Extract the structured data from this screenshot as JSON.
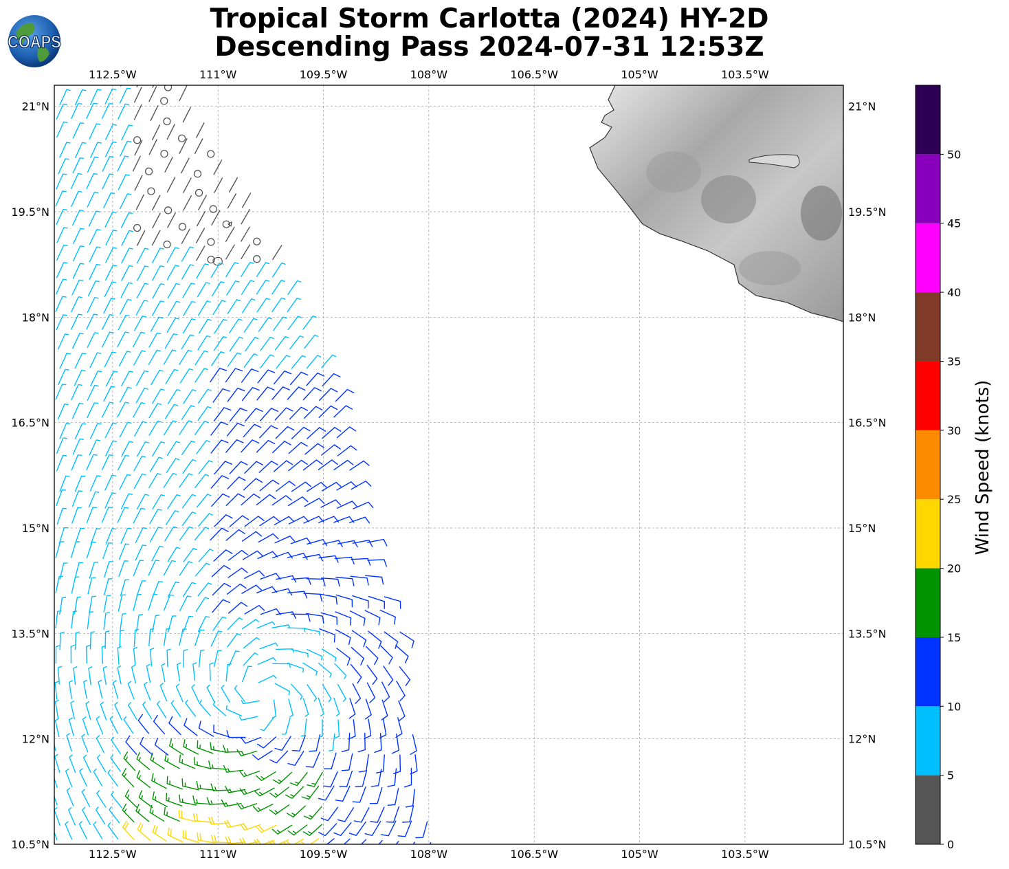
{
  "title": {
    "line1": "Tropical Storm Carlotta (2024) HY-2D",
    "line2": "Descending Pass 2024-07-31 12:53Z"
  },
  "logo": {
    "text": "COAPS",
    "icon": "globe-icon"
  },
  "axes": {
    "lon_ticks": [
      "112.5°W",
      "111°W",
      "109.5°W",
      "108°W",
      "106.5°W",
      "105°W",
      "103.5°W"
    ],
    "lon_values": [
      -112.5,
      -111,
      -109.5,
      -108,
      -106.5,
      -105,
      -103.5
    ],
    "lat_ticks": [
      "21°N",
      "19.5°N",
      "18°N",
      "16.5°N",
      "15°N",
      "13.5°N",
      "12°N",
      "10.5°N"
    ],
    "lat_values": [
      21,
      19.5,
      18,
      16.5,
      15,
      13.5,
      12,
      10.5
    ],
    "lon_range": [
      -113.33,
      -102.1
    ],
    "lat_range": [
      10.5,
      21.3
    ],
    "grid": true
  },
  "colorbar": {
    "label": "Wind Speed (knots)",
    "ticks": [
      "0",
      "5",
      "10",
      "15",
      "20",
      "25",
      "30",
      "35",
      "40",
      "45",
      "50"
    ],
    "bins": [
      {
        "min": 0,
        "max": 5,
        "color": "#555555"
      },
      {
        "min": 5,
        "max": 10,
        "color": "#00bfff"
      },
      {
        "min": 10,
        "max": 15,
        "color": "#0033ff"
      },
      {
        "min": 15,
        "max": 20,
        "color": "#009400"
      },
      {
        "min": 20,
        "max": 25,
        "color": "#ffd700"
      },
      {
        "min": 25,
        "max": 30,
        "color": "#ff8c00"
      },
      {
        "min": 30,
        "max": 35,
        "color": "#ff0000"
      },
      {
        "min": 35,
        "max": 40,
        "color": "#7f3b27"
      },
      {
        "min": 40,
        "max": 45,
        "color": "#ff00ff"
      },
      {
        "min": 45,
        "max": 50,
        "color": "#8800bb"
      },
      {
        "min": 50,
        "max": 55,
        "color": "#2d0055"
      }
    ]
  },
  "chart_data": {
    "type": "wind-barb-map",
    "storm_center": {
      "lon": -110.4,
      "lat": 12.6
    },
    "swath_edge_lat_lon": [
      [
        21.3,
        -111.6
      ],
      [
        18.5,
        -110.0
      ],
      [
        16.5,
        -109.2
      ],
      [
        14.5,
        -108.8
      ],
      [
        13.5,
        -108.4
      ],
      [
        12.0,
        -108.2
      ],
      [
        10.5,
        -107.9
      ]
    ],
    "land_region": "Mexico west coast, grayscale terrain",
    "wind_speed_units": "knots"
  }
}
